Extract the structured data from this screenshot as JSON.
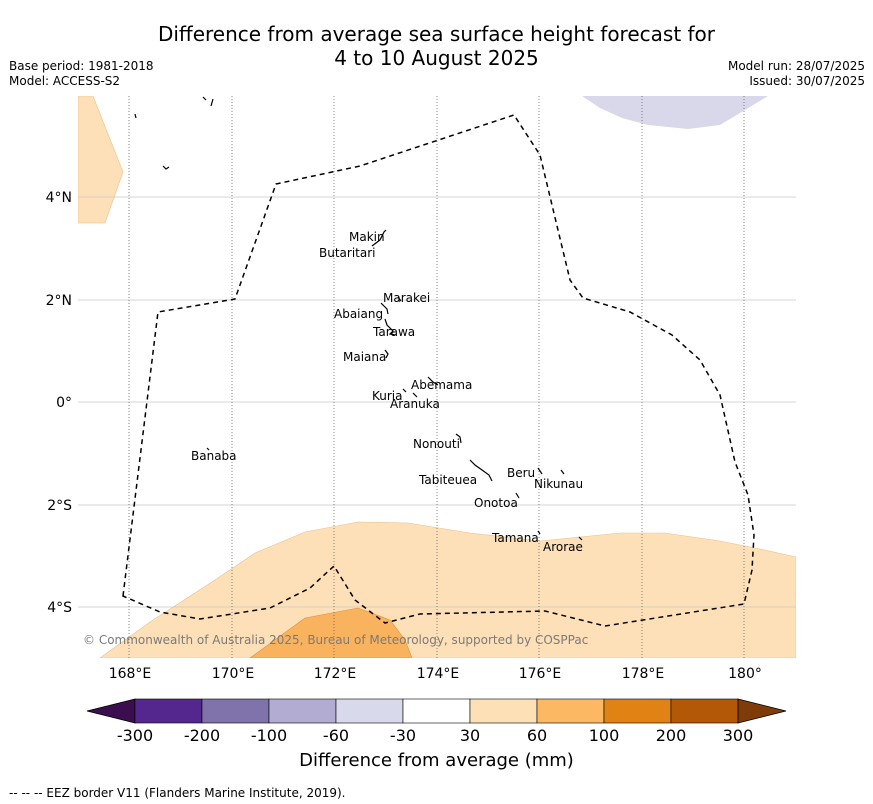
{
  "title_line1": "Difference from average sea surface height forecast for",
  "title_line2": "4 to 10 August 2025",
  "base_period": "Base period: 1981-2018",
  "model": "Model: ACCESS-S2",
  "model_run": "Model run: 28/07/2025",
  "issued": "Issued: 30/07/2025",
  "map": {
    "y_ticks": [
      "4°N",
      "2°N",
      "0°",
      "2°S",
      "4°S"
    ],
    "x_ticks": [
      "168°E",
      "170°E",
      "172°E",
      "174°E",
      "176°E",
      "178°E",
      "180°"
    ],
    "islands": [
      "Makin",
      "Butaritari",
      "Marakei",
      "Abaiang",
      "Tarawa",
      "Maiana",
      "Abemama",
      "Kuria",
      "Aranuka",
      "Nonouti",
      "Banaba",
      "Beru",
      "Nikunau",
      "Tabiteuea",
      "Onotoa",
      "Tamana",
      "Arorae"
    ],
    "copyright": "© Commonwealth of Australia 2025, Bureau of Meteorology, supported by COSPPac",
    "layer_colors": {
      "land_outline": "#000000",
      "eez_border": "#000000",
      "light_orange": "#fde0b8",
      "mid_orange": "#f9b35f",
      "light_purple": "#d8d8ea",
      "grid": "#c8c8c8"
    }
  },
  "colorbar": {
    "ticks": [
      "-300",
      "-200",
      "-100",
      "-60",
      "-30",
      "30",
      "60",
      "100",
      "200",
      "300"
    ],
    "colors": [
      "#3b0f4f",
      "#54278f",
      "#8073ac",
      "#b2abd2",
      "#d8daeb",
      "#ffffff",
      "#fee0b6",
      "#fdb863",
      "#e08214",
      "#b35806",
      "#7f3b08"
    ],
    "label": "Difference from average (mm)"
  },
  "footer": "--  --  -- EEZ border V11 (Flanders Marine Institute, 2019)."
}
